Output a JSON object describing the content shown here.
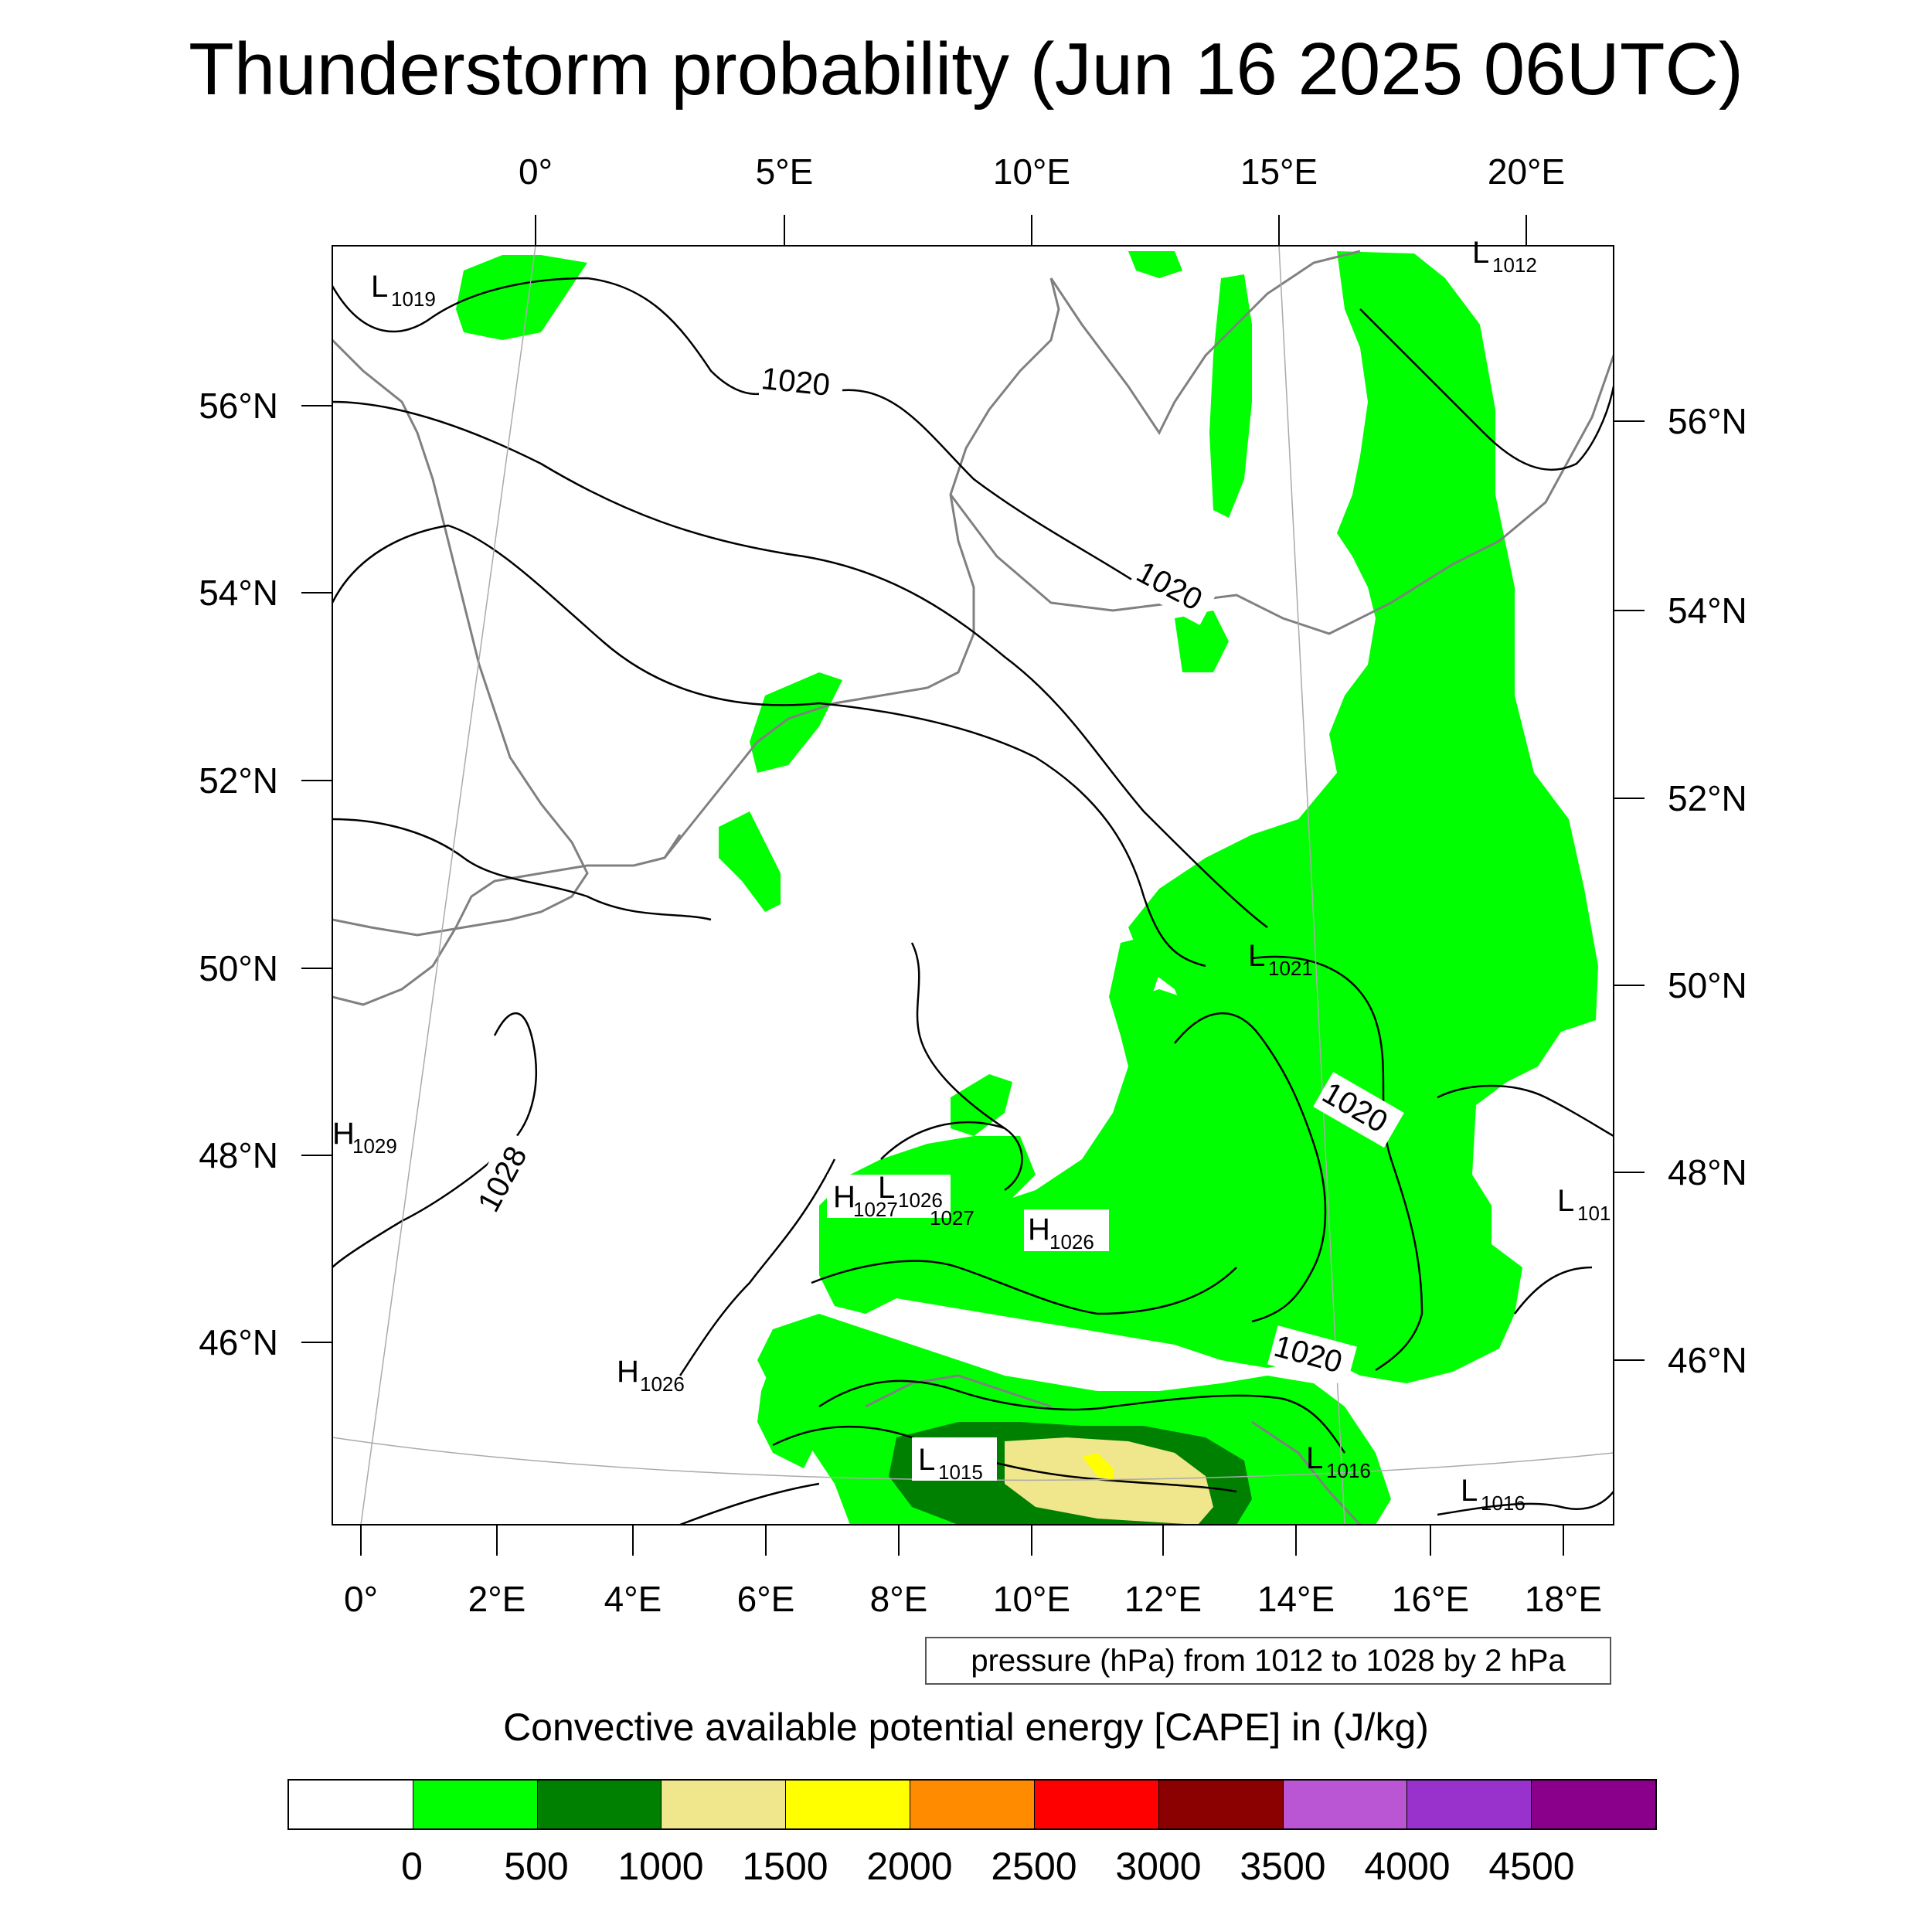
{
  "title": "Thunderstorm probability (Jun 16 2025 06UTC)",
  "top_lon_labels": [
    "0°",
    "5°E",
    "10°E",
    "15°E",
    "20°E"
  ],
  "bottom_lon_labels": [
    "0°",
    "2°E",
    "4°E",
    "6°E",
    "8°E",
    "10°E",
    "12°E",
    "14°E",
    "16°E",
    "18°E"
  ],
  "left_lat_labels": [
    "56°N",
    "54°N",
    "52°N",
    "50°N",
    "48°N",
    "46°N"
  ],
  "right_lat_labels": [
    "56°N",
    "54°N",
    "52°N",
    "50°N",
    "48°N",
    "46°N"
  ],
  "pressure_centers": [
    {
      "letter": "L",
      "value": "1019"
    },
    {
      "letter": "L",
      "value": "1012"
    },
    {
      "letter": "L",
      "value": "1021"
    },
    {
      "letter": "H",
      "value": "1029"
    },
    {
      "letter": "H",
      "value": "1027"
    },
    {
      "letter": "L",
      "value": "1026"
    },
    {
      "letter": "",
      "value": "1027"
    },
    {
      "letter": "H",
      "value": "1026"
    },
    {
      "letter": "L",
      "value": "101"
    },
    {
      "letter": "H",
      "value": "1026"
    },
    {
      "letter": "L",
      "value": "1015"
    },
    {
      "letter": "L",
      "value": "1016"
    },
    {
      "letter": "L",
      "value": "1016"
    }
  ],
  "contour_labels": [
    "1020",
    "1020",
    "1020",
    "1020",
    "1028"
  ],
  "contour_info": "pressure (hPa) from 1012 to 1028 by 2 hPa",
  "colorbar": {
    "title": "Convective available potential energy [CAPE] in (J/kg)",
    "colors": [
      "#FFFFFF",
      "#00FF00",
      "#008000",
      "#F0E68C",
      "#FFFF00",
      "#FF8C00",
      "#FF0000",
      "#8B0000",
      "#BA55D3",
      "#9932CC",
      "#8B008B"
    ],
    "labels": [
      "0",
      "500",
      "1000",
      "1500",
      "2000",
      "2500",
      "3000",
      "3500",
      "4000",
      "4500"
    ]
  },
  "colors": {
    "cape_green": "#00FF00",
    "cape_dark_green": "#008000",
    "cape_khaki": "#F0E68C",
    "cape_yellow": "#FFFF00",
    "coastline": "#808080",
    "isobar": "#000000"
  }
}
